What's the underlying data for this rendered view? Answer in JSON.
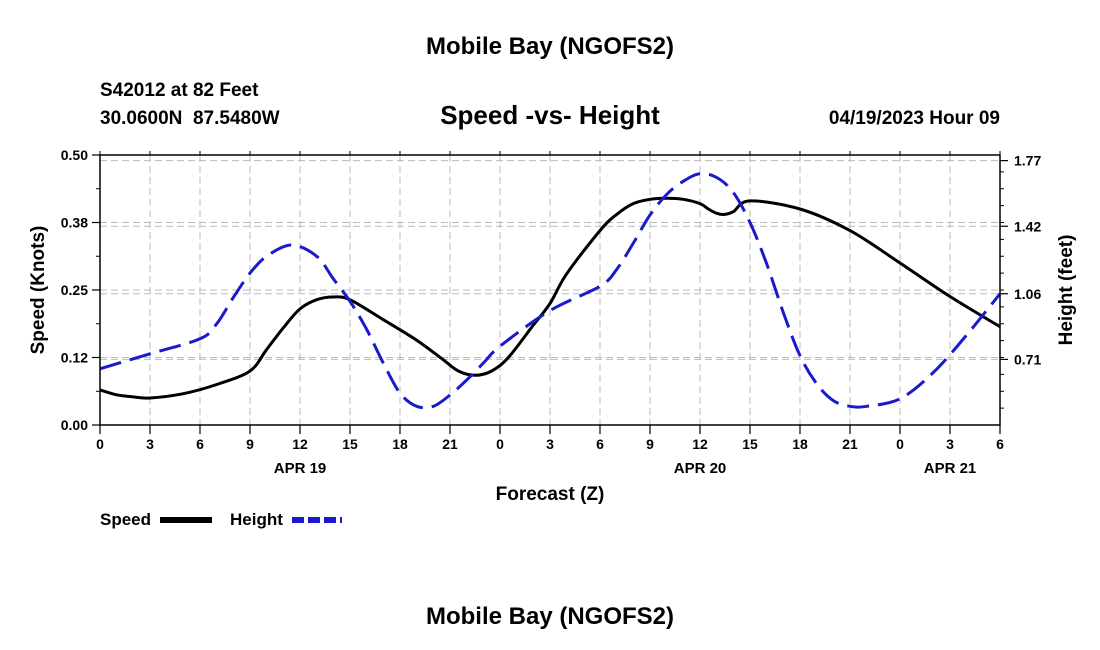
{
  "page": {
    "title": "Mobile Bay (NGOFS2)",
    "station_line": "S42012 at 82 Feet",
    "coords_line": "30.0600N  87.5480W",
    "datetime": "04/19/2023 Hour 09",
    "footer_title": "Mobile Bay (NGOFS2)"
  },
  "colors": {
    "speed": "#000000",
    "height": "#1a1acc",
    "grid": "#bbbbbb"
  },
  "chart_data": {
    "type": "line",
    "title": "Speed -vs- Height",
    "xlabel": "Forecast (Z)",
    "ylabel_left": "Speed (Knots)",
    "ylabel_right": "Height (feet)",
    "x_range": [
      0,
      54
    ],
    "x_tick_labels": [
      "0",
      "3",
      "6",
      "9",
      "12",
      "15",
      "18",
      "21",
      "0",
      "3",
      "6",
      "9",
      "12",
      "15",
      "18",
      "21",
      "0",
      "3",
      "6"
    ],
    "date_labels": [
      {
        "label": "APR 19",
        "x": 12
      },
      {
        "label": "APR 20",
        "x": 36
      },
      {
        "label": "APR 21",
        "x": 51
      }
    ],
    "ylim_left": [
      0,
      0.5
    ],
    "left_tick_labels": [
      "0.00",
      "0.12",
      "0.25",
      "0.38",
      "0.50"
    ],
    "left_tick_values": [
      0,
      0.125,
      0.25,
      0.375,
      0.5
    ],
    "ylim_right": [
      0.36,
      1.8
    ],
    "right_tick_labels": [
      "0.71",
      "1.06",
      "1.42",
      "1.77"
    ],
    "right_tick_values": [
      0.71,
      1.06,
      1.42,
      1.77
    ],
    "grid": true,
    "series": [
      {
        "name": "Speed",
        "axis": "left",
        "style": "solid",
        "x": [
          0,
          1,
          2,
          3,
          5,
          7,
          9,
          10,
          11,
          12,
          13,
          14,
          15,
          17,
          19,
          20.5,
          21.5,
          22.5,
          23.5,
          24.5,
          26,
          27,
          28,
          30,
          31,
          32,
          33,
          34,
          35,
          36,
          36.5,
          37,
          37.5,
          38,
          39,
          42,
          45,
          48,
          51,
          54
        ],
        "y": [
          0.065,
          0.056,
          0.052,
          0.05,
          0.058,
          0.075,
          0.1,
          0.14,
          0.18,
          0.215,
          0.232,
          0.237,
          0.232,
          0.195,
          0.157,
          0.123,
          0.1,
          0.092,
          0.1,
          0.125,
          0.185,
          0.225,
          0.28,
          0.36,
          0.39,
          0.41,
          0.418,
          0.42,
          0.418,
          0.41,
          0.4,
          0.392,
          0.39,
          0.395,
          0.415,
          0.4,
          0.36,
          0.3,
          0.238,
          0.182
        ]
      },
      {
        "name": "Height",
        "axis": "right",
        "style": "dashed",
        "x": [
          0,
          3,
          6,
          7,
          8,
          9,
          10,
          11.5,
          13,
          14,
          15,
          16,
          17,
          18,
          19,
          20,
          21,
          22,
          23,
          24,
          27,
          30,
          31,
          32,
          33,
          34,
          35,
          36,
          37,
          38,
          39,
          40,
          41,
          42,
          43,
          44,
          45,
          46,
          48,
          50,
          52,
          54
        ],
        "y": [
          0.66,
          0.74,
          0.82,
          0.9,
          1.04,
          1.17,
          1.26,
          1.32,
          1.26,
          1.14,
          1.02,
          0.87,
          0.69,
          0.53,
          0.46,
          0.46,
          0.52,
          0.6,
          0.69,
          0.78,
          0.97,
          1.1,
          1.19,
          1.33,
          1.48,
          1.59,
          1.66,
          1.7,
          1.68,
          1.6,
          1.44,
          1.22,
          0.96,
          0.73,
          0.58,
          0.49,
          0.46,
          0.46,
          0.5,
          0.64,
          0.84,
          1.06
        ]
      }
    ],
    "legend": {
      "placement": "bottom-left",
      "entries": [
        "Speed",
        "Height"
      ]
    }
  }
}
